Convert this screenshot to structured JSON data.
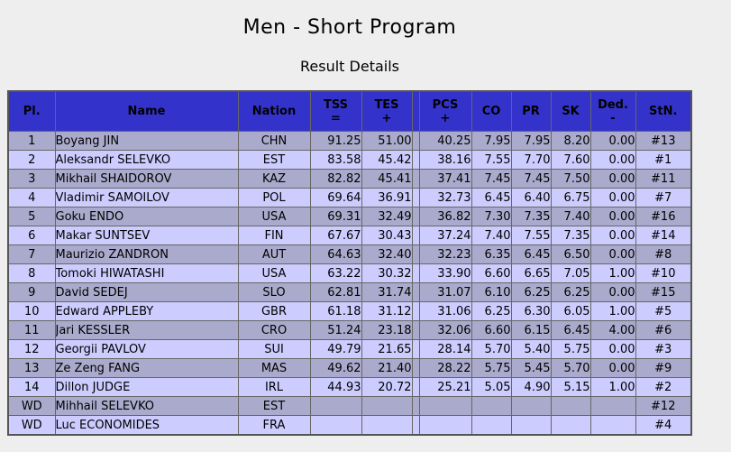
{
  "page": {
    "title": "Men - Short Program",
    "subtitle": "Result Details"
  },
  "colors": {
    "header_bg": "#3333CC",
    "row_odd_bg": "#AAAACC",
    "row_even_bg": "#CCCCFF",
    "cell_border": "#666666",
    "outer_border": "#555555",
    "page_bg": "#EEEEEE",
    "text": "#000000"
  },
  "table": {
    "columns": [
      {
        "id": "pl",
        "label": "Pl.",
        "sub": ""
      },
      {
        "id": "name",
        "label": "Name",
        "sub": ""
      },
      {
        "id": "nation",
        "label": "Nation",
        "sub": ""
      },
      {
        "id": "tss",
        "label": "TSS",
        "sub": "="
      },
      {
        "id": "tes",
        "label": "TES",
        "sub": "+"
      },
      {
        "id": "gap",
        "label": "",
        "sub": ""
      },
      {
        "id": "pcs",
        "label": "PCS",
        "sub": "+"
      },
      {
        "id": "co",
        "label": "CO",
        "sub": ""
      },
      {
        "id": "pr",
        "label": "PR",
        "sub": ""
      },
      {
        "id": "sk",
        "label": "SK",
        "sub": ""
      },
      {
        "id": "ded",
        "label": "Ded.",
        "sub": "-"
      },
      {
        "id": "stn",
        "label": "StN.",
        "sub": ""
      }
    ],
    "rows": [
      {
        "pl": "1",
        "name": "Boyang JIN",
        "nation": "CHN",
        "tss": "91.25",
        "tes": "51.00",
        "pcs": "40.25",
        "co": "7.95",
        "pr": "7.95",
        "sk": "8.20",
        "ded": "0.00",
        "stn": "#13"
      },
      {
        "pl": "2",
        "name": "Aleksandr SELEVKO",
        "nation": "EST",
        "tss": "83.58",
        "tes": "45.42",
        "pcs": "38.16",
        "co": "7.55",
        "pr": "7.70",
        "sk": "7.60",
        "ded": "0.00",
        "stn": "#1"
      },
      {
        "pl": "3",
        "name": "Mikhail SHAIDOROV",
        "nation": "KAZ",
        "tss": "82.82",
        "tes": "45.41",
        "pcs": "37.41",
        "co": "7.45",
        "pr": "7.45",
        "sk": "7.50",
        "ded": "0.00",
        "stn": "#11"
      },
      {
        "pl": "4",
        "name": "Vladimir SAMOILOV",
        "nation": "POL",
        "tss": "69.64",
        "tes": "36.91",
        "pcs": "32.73",
        "co": "6.45",
        "pr": "6.40",
        "sk": "6.75",
        "ded": "0.00",
        "stn": "#7"
      },
      {
        "pl": "5",
        "name": "Goku ENDO",
        "nation": "USA",
        "tss": "69.31",
        "tes": "32.49",
        "pcs": "36.82",
        "co": "7.30",
        "pr": "7.35",
        "sk": "7.40",
        "ded": "0.00",
        "stn": "#16"
      },
      {
        "pl": "6",
        "name": "Makar SUNTSEV",
        "nation": "FIN",
        "tss": "67.67",
        "tes": "30.43",
        "pcs": "37.24",
        "co": "7.40",
        "pr": "7.55",
        "sk": "7.35",
        "ded": "0.00",
        "stn": "#14"
      },
      {
        "pl": "7",
        "name": "Maurizio ZANDRON",
        "nation": "AUT",
        "tss": "64.63",
        "tes": "32.40",
        "pcs": "32.23",
        "co": "6.35",
        "pr": "6.45",
        "sk": "6.50",
        "ded": "0.00",
        "stn": "#8"
      },
      {
        "pl": "8",
        "name": "Tomoki HIWATASHI",
        "nation": "USA",
        "tss": "63.22",
        "tes": "30.32",
        "pcs": "33.90",
        "co": "6.60",
        "pr": "6.65",
        "sk": "7.05",
        "ded": "1.00",
        "stn": "#10"
      },
      {
        "pl": "9",
        "name": "David SEDEJ",
        "nation": "SLO",
        "tss": "62.81",
        "tes": "31.74",
        "pcs": "31.07",
        "co": "6.10",
        "pr": "6.25",
        "sk": "6.25",
        "ded": "0.00",
        "stn": "#15"
      },
      {
        "pl": "10",
        "name": "Edward APPLEBY",
        "nation": "GBR",
        "tss": "61.18",
        "tes": "31.12",
        "pcs": "31.06",
        "co": "6.25",
        "pr": "6.30",
        "sk": "6.05",
        "ded": "1.00",
        "stn": "#5"
      },
      {
        "pl": "11",
        "name": "Jari KESSLER",
        "nation": "CRO",
        "tss": "51.24",
        "tes": "23.18",
        "pcs": "32.06",
        "co": "6.60",
        "pr": "6.15",
        "sk": "6.45",
        "ded": "4.00",
        "stn": "#6"
      },
      {
        "pl": "12",
        "name": "Georgii PAVLOV",
        "nation": "SUI",
        "tss": "49.79",
        "tes": "21.65",
        "pcs": "28.14",
        "co": "5.70",
        "pr": "5.40",
        "sk": "5.75",
        "ded": "0.00",
        "stn": "#3"
      },
      {
        "pl": "13",
        "name": "Ze Zeng FANG",
        "nation": "MAS",
        "tss": "49.62",
        "tes": "21.40",
        "pcs": "28.22",
        "co": "5.75",
        "pr": "5.45",
        "sk": "5.70",
        "ded": "0.00",
        "stn": "#9"
      },
      {
        "pl": "14",
        "name": "Dillon JUDGE",
        "nation": "IRL",
        "tss": "44.93",
        "tes": "20.72",
        "pcs": "25.21",
        "co": "5.05",
        "pr": "4.90",
        "sk": "5.15",
        "ded": "1.00",
        "stn": "#2"
      },
      {
        "pl": "WD",
        "name": "Mihhail SELEVKO",
        "nation": "EST",
        "tss": "",
        "tes": "",
        "pcs": "",
        "co": "",
        "pr": "",
        "sk": "",
        "ded": "",
        "stn": "#12"
      },
      {
        "pl": "WD",
        "name": "Luc ECONOMIDES",
        "nation": "FRA",
        "tss": "",
        "tes": "",
        "pcs": "",
        "co": "",
        "pr": "",
        "sk": "",
        "ded": "",
        "stn": "#4"
      }
    ]
  }
}
